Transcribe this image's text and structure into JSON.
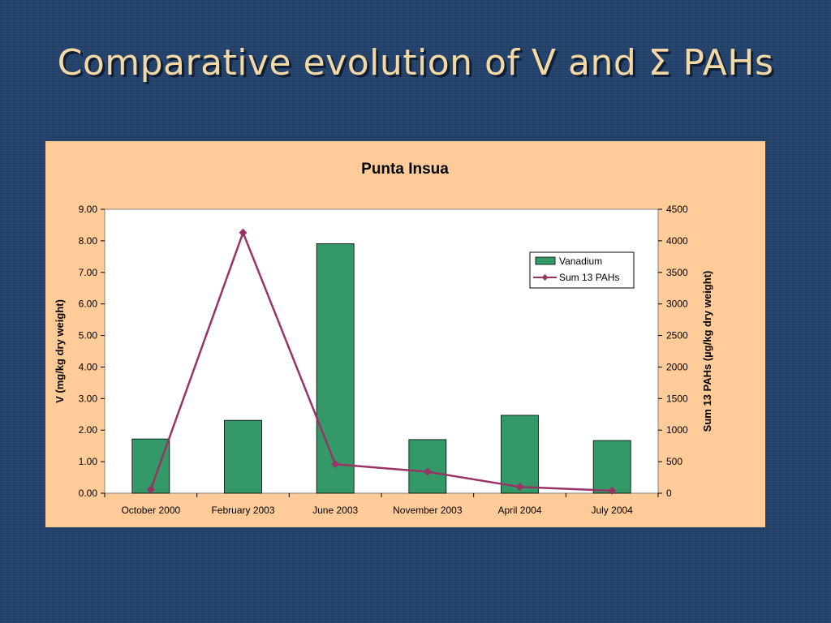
{
  "slide": {
    "title": "Comparative evolution of V and Σ PAHs"
  },
  "colors": {
    "background": "#22416b",
    "title": "#f5d9a4",
    "panel": "#ffcc99",
    "bar": "#339966",
    "line": "#993366"
  },
  "chart_data": {
    "type": "bar",
    "title": "Punta Insua",
    "ylabel": "V (mg/kg dry weight)",
    "y2label": "Sum 13 PAHs (µg/kg dry weight)",
    "categories": [
      "October 2000",
      "February 2003",
      "June 2003",
      "November 2003",
      "April 2004",
      "July 2004"
    ],
    "ylim": [
      0,
      9
    ],
    "y2lim": [
      0,
      4500
    ],
    "yticks": [
      "0.00",
      "1.00",
      "2.00",
      "3.00",
      "4.00",
      "5.00",
      "6.00",
      "7.00",
      "8.00",
      "9.00"
    ],
    "y2ticks": [
      "0",
      "500",
      "1000",
      "1500",
      "2000",
      "2500",
      "3000",
      "3500",
      "4000",
      "4500"
    ],
    "legend_position": "top-right",
    "grid": false,
    "series": [
      {
        "name": "Vanadium",
        "type": "bar",
        "axis": "left",
        "color": "#339966",
        "values": [
          1.72,
          2.31,
          7.91,
          1.7,
          2.47,
          1.67
        ]
      },
      {
        "name": "Sum 13 PAHs",
        "type": "line",
        "axis": "right",
        "color": "#993366",
        "marker": "diamond",
        "values": [
          60,
          4130,
          460,
          340,
          100,
          40
        ]
      }
    ]
  }
}
